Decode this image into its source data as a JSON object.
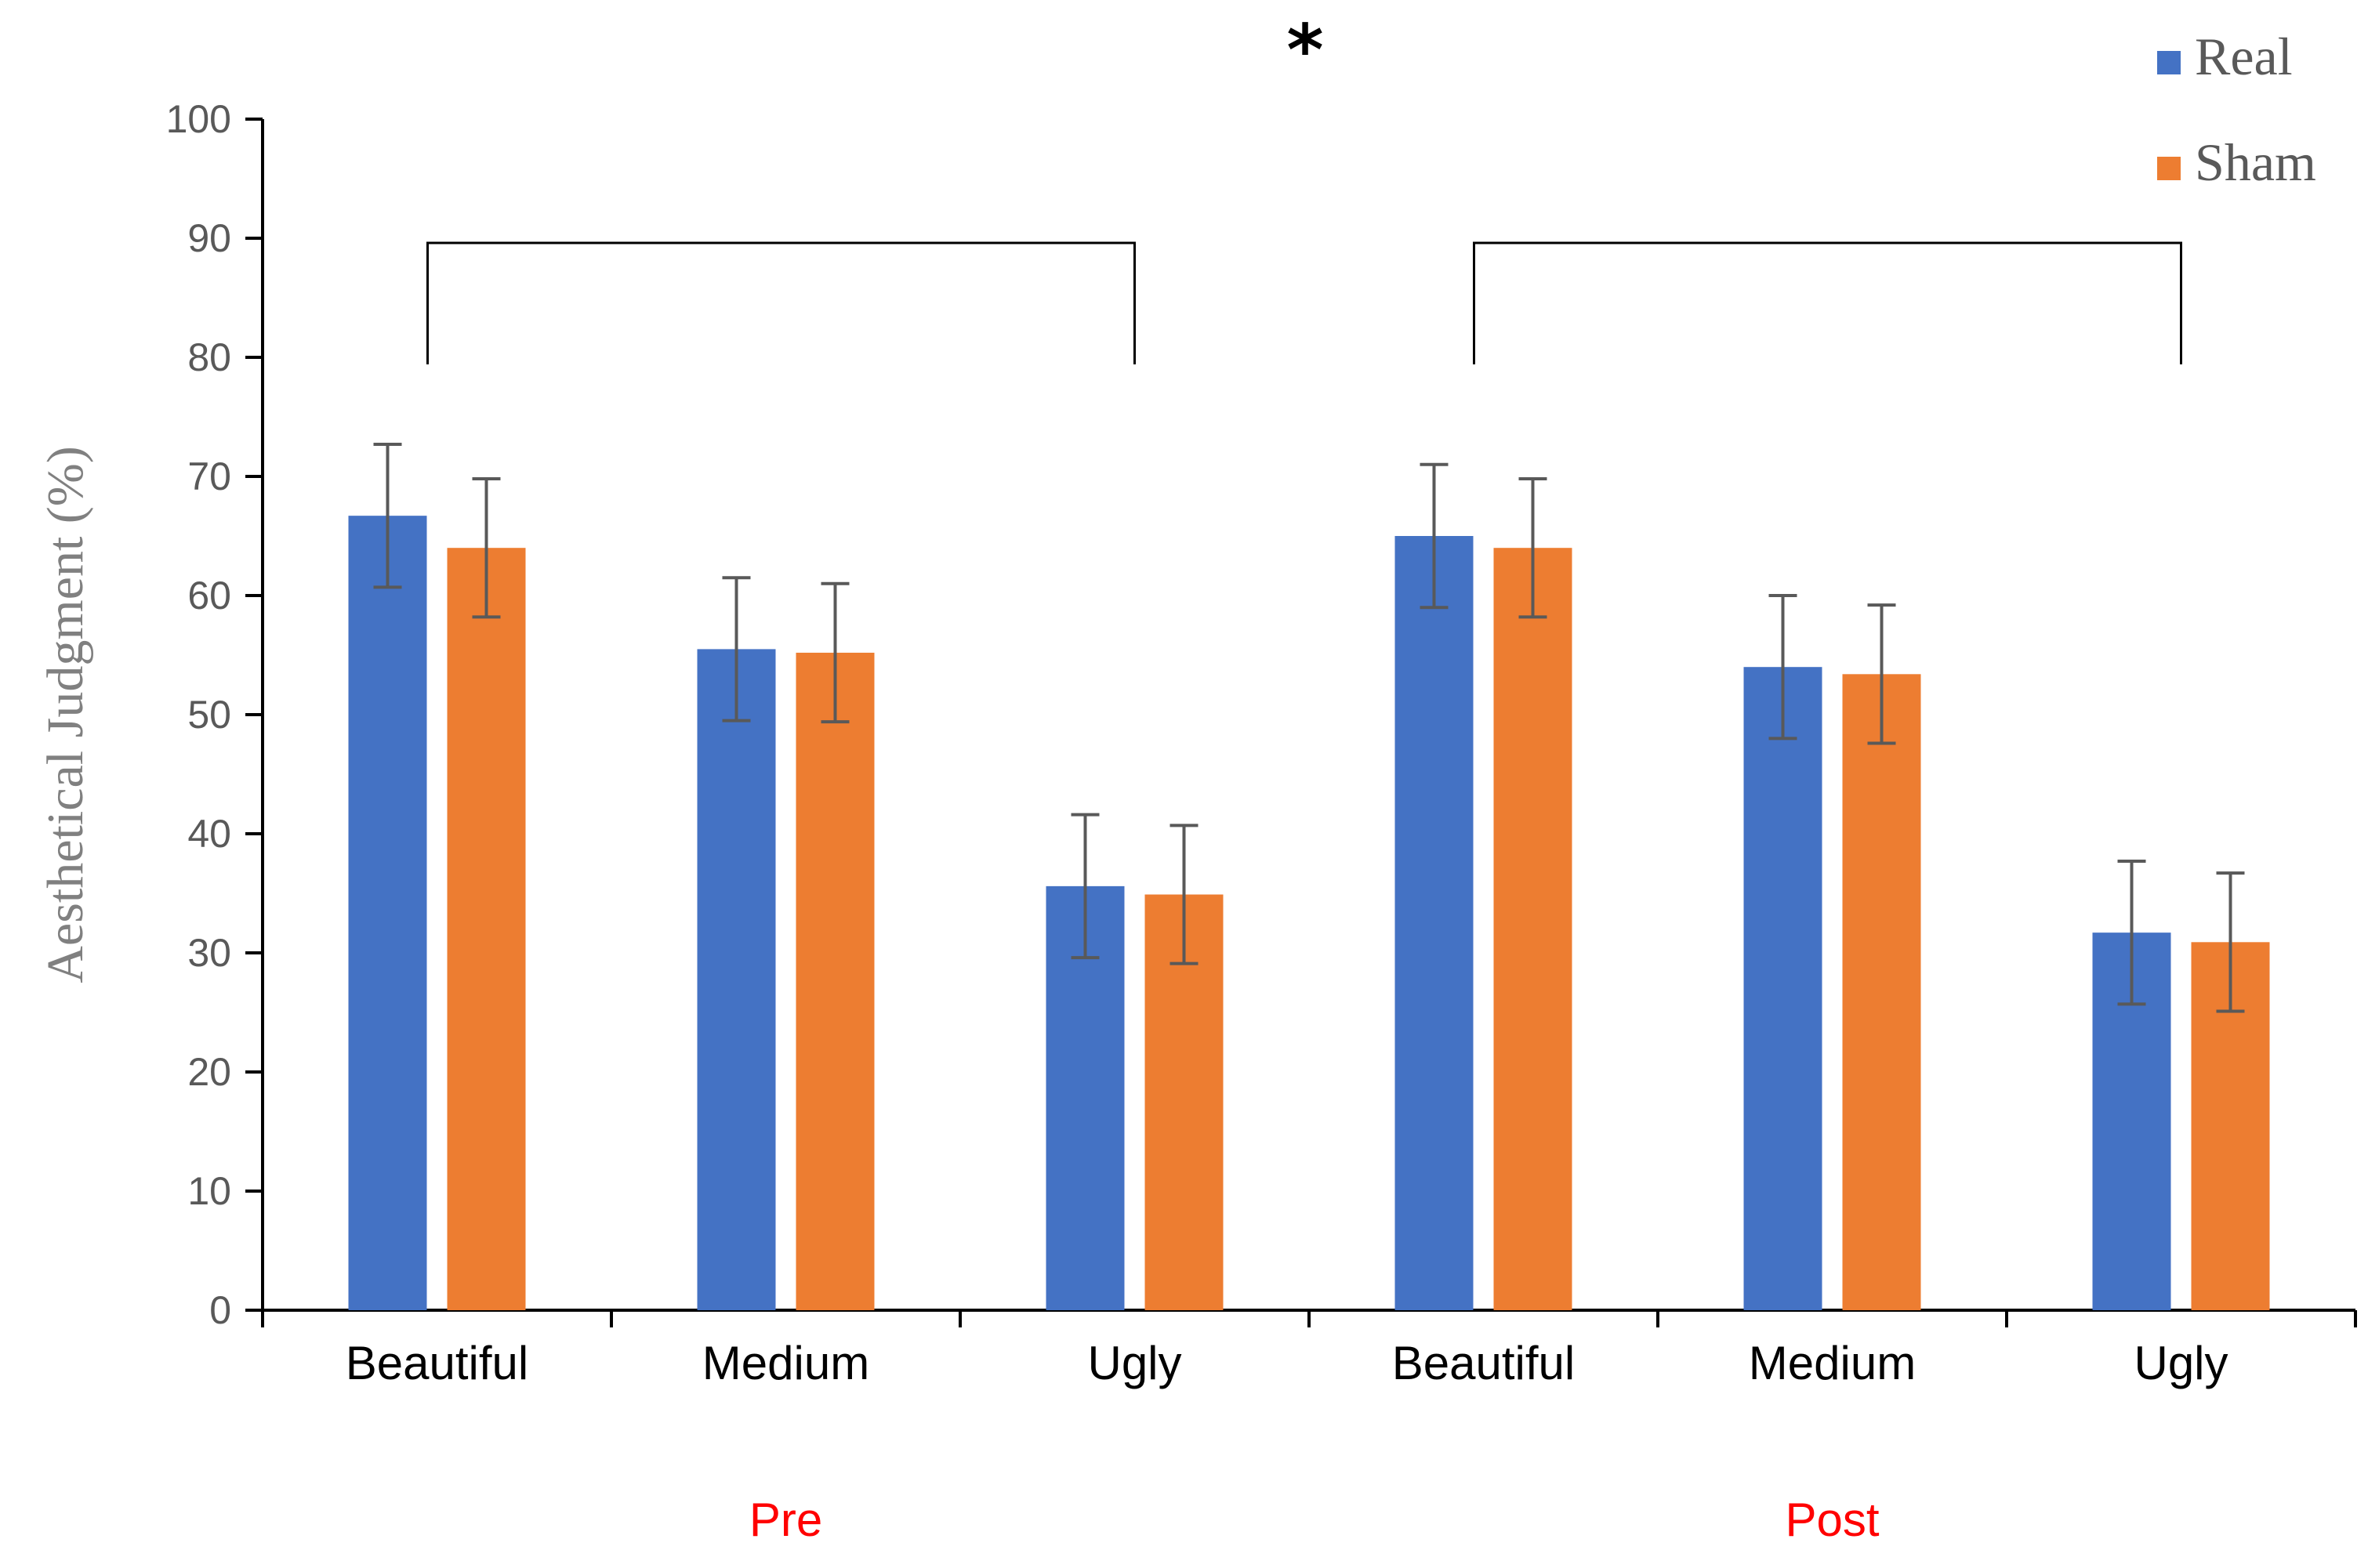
{
  "chart_data": {
    "type": "bar",
    "title": "",
    "xlabel": "",
    "ylabel": "Aesthetical Judgment (%)",
    "ylim": [
      0,
      100
    ],
    "yticks": [
      "0",
      "10",
      "20",
      "30",
      "40",
      "50",
      "60",
      "70",
      "80",
      "90",
      "100"
    ],
    "categories": [
      "Beautiful",
      "Medium",
      "Ugly",
      "Beautiful",
      "Medium",
      "Ugly"
    ],
    "groups": [
      {
        "label": "Pre",
        "color": "#ff0000"
      },
      {
        "label": "Post",
        "color": "#ff0000"
      }
    ],
    "series": [
      {
        "name": "Real",
        "color": "#4472c4",
        "values": [
          66.7,
          55.5,
          35.6,
          65.0,
          54.0,
          31.7
        ],
        "errors": [
          6.0,
          6.0,
          6.0,
          6.0,
          6.0,
          6.0
        ]
      },
      {
        "name": "Sham",
        "color": "#ed7d31",
        "values": [
          64.0,
          55.2,
          34.9,
          64.0,
          53.4,
          30.9
        ],
        "errors": [
          5.8,
          5.8,
          5.8,
          5.8,
          5.8,
          5.8
        ]
      }
    ],
    "significance": {
      "marker": "*"
    },
    "legend_position": "top-right",
    "grid": false
  }
}
